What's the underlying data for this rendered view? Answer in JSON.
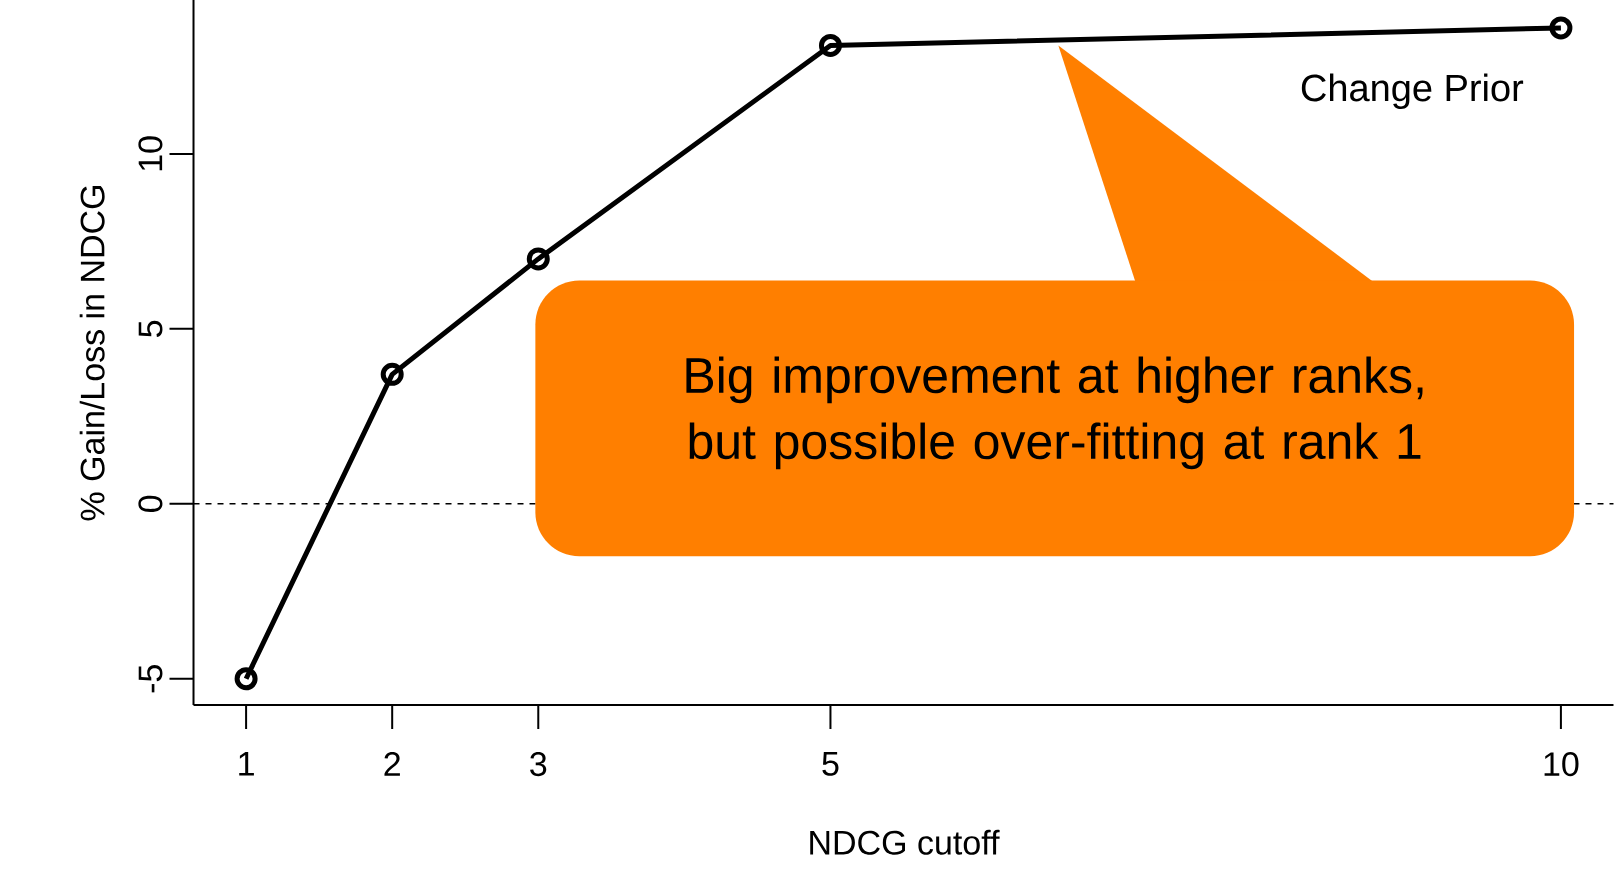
{
  "chart_data": {
    "type": "line",
    "xlabel": "NDCG cutoff",
    "ylabel": "% Gain/Loss in NDCG",
    "x": [
      1,
      2,
      3,
      5,
      10
    ],
    "series": [
      {
        "name": "Change Prior",
        "color": "#000000",
        "values": [
          -5.0,
          3.7,
          7.0,
          13.1,
          13.6
        ]
      }
    ],
    "xlim": [
      0.64,
      10.36
    ],
    "ylim": [
      -5.75,
      14.4
    ],
    "xticks": [
      1,
      2,
      3,
      5,
      10
    ],
    "yticks": [
      -5,
      0,
      5,
      10
    ],
    "marker": "circle",
    "line_style": "solid",
    "grid": false,
    "legend": false,
    "ref_lines": [
      {
        "axis": "y",
        "value": 0,
        "line_style": "dashed",
        "color": "#000000"
      }
    ],
    "annotations": [
      "Big improvement at higher ranks, but possible over-fitting at rank 1"
    ]
  }
}
